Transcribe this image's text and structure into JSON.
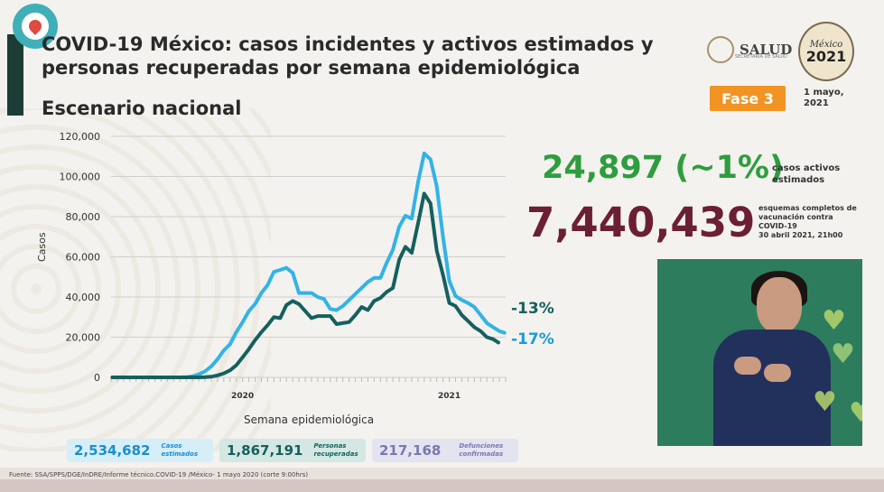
{
  "title": "COVID-19 México: casos incidentes y activos estimados y personas recuperadas por semana epidemiológica",
  "subtitle": "Escenario nacional",
  "logos": {
    "salud": "SALUD",
    "salud_small": "SECRETARÍA DE SALUD",
    "mexico_top": "México",
    "year": "2021"
  },
  "fase": "Fase 3",
  "date": "1 mayo, 2021",
  "active_cases": {
    "value": "24,897 (~1%)",
    "label": "casos activos estimados"
  },
  "vaccination": {
    "value": "7,440,439",
    "label": "esquemas completos de vacunación contra COVID-19",
    "date": "30 abril 2021, 21h00"
  },
  "stats": {
    "casos": {
      "value": "2,534,682",
      "label": "Casos estimados"
    },
    "recuperadas": {
      "value": "1,867,191",
      "label": "Personas recuperadas"
    },
    "defunciones": {
      "value": "217,168",
      "label": "Defunciones confirmadas"
    }
  },
  "footer": "Fuente: SSA/SPPS/DGE/InDRE/Informe técnico.COVID-19 /México- 1 mayo 2020 (corte 9:00hrs)",
  "colors": {
    "light_series": "#33b3e6",
    "dark_series": "#15605e",
    "green": "#2e9d3e",
    "maroon": "#6b1f33",
    "orange": "#f29423"
  },
  "chart_data": {
    "type": "line",
    "xlabel": "Semana epidemiológica",
    "ylabel": "Casos",
    "ylim": [
      0,
      120000
    ],
    "yticks": [
      "0",
      "20,000",
      "40,000",
      "60,000",
      "80,000",
      "100,000",
      "120,000"
    ],
    "x_year_labels": [
      {
        "label": "2020",
        "index": 21
      },
      {
        "label": "2021",
        "index": 54
      }
    ],
    "grid": true,
    "series": [
      {
        "values": [
          0,
          0,
          0,
          0,
          0,
          0,
          0,
          0,
          0,
          0,
          0,
          0,
          100,
          500,
          1500,
          3000,
          5500,
          9000,
          13500,
          16500,
          22500,
          27500,
          33000,
          36500,
          42000,
          46000,
          52500,
          53500,
          54500,
          52000,
          42000,
          42000,
          42000,
          40000,
          39000,
          34000,
          33500,
          35500,
          38500,
          41500,
          44500,
          47500,
          49500,
          49500,
          57000,
          63500,
          75000,
          80500,
          79000,
          97000,
          111500,
          108500,
          95000,
          70000,
          48000,
          40500,
          38500,
          37000,
          35000,
          31000,
          27000,
          25000,
          23000,
          22000
        ]
      },
      {
        "values": [
          0,
          0,
          0,
          0,
          0,
          0,
          0,
          0,
          0,
          0,
          0,
          0,
          0,
          0,
          0,
          100,
          300,
          1000,
          2000,
          3500,
          6000,
          10000,
          14000,
          18500,
          22500,
          26000,
          30000,
          29500,
          36000,
          38000,
          36500,
          33000,
          29500,
          30500,
          30500,
          30500,
          26500,
          27000,
          27500,
          31000,
          35000,
          33500,
          38000,
          39500,
          42500,
          44500,
          58500,
          65000,
          62000,
          76500,
          91500,
          86500,
          63000,
          51000,
          37000,
          35500,
          31000,
          28000,
          25000,
          23000,
          20000,
          19000,
          17000
        ]
      }
    ],
    "annotations": [
      "-13%",
      "-17%"
    ]
  }
}
